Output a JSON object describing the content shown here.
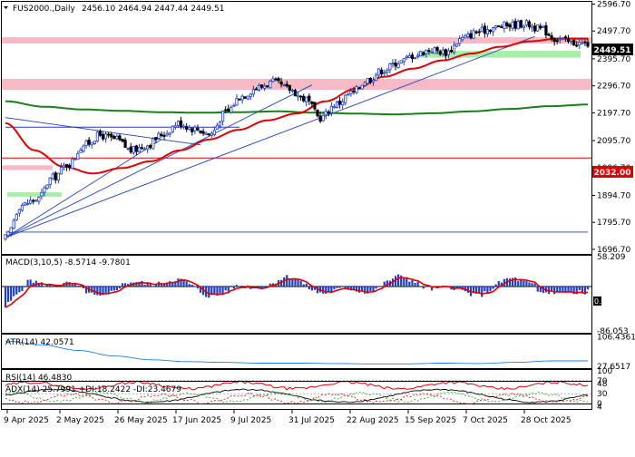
{
  "header": {
    "symbol": "FUS2000.,Daily",
    "ohlc": "2456.10 2464.94 2447.44 2449.51"
  },
  "chart_data": [
    {
      "type": "candlestick",
      "panel": "price",
      "title": "FUS2000.,Daily 2456.10 2464.94 2447.44 2449.51",
      "y_ticks": [
        "2596.70",
        "2497.70",
        "2395.70",
        "2296.70",
        "2197.70",
        "2095.70",
        "1996.70",
        "1894.70",
        "1795.70",
        "1696.70"
      ],
      "x_ticks": [
        "9 Apr 2025",
        "2 May 2025",
        "26 May 2025",
        "17 Jun 2025",
        "9 Jul 2025",
        "31 Jul 2025",
        "22 Aug 2025",
        "15 Sep 2025",
        "7 Oct 2025",
        "28 Oct 2025"
      ],
      "ylim": [
        1680,
        2605
      ],
      "current_price_label": "2449.51",
      "horizontal_line_label": "2032.00",
      "horizontal_line": {
        "value": 2032,
        "color": "#e00000"
      },
      "colors": {
        "bull": "#1f3fbf",
        "bear": "#000000",
        "ma_fast": "#e00000",
        "ma_slow": "#1a7f1a",
        "trend": "#1f3fbf",
        "resistance_zone": "#f7b9c6",
        "support_zone": "#a8eea8"
      },
      "resistance_zones": [
        [
          2452,
          2475
        ],
        [
          2282,
          2322
        ],
        [
          1988,
          2005
        ]
      ],
      "support_zones": [
        [
          2400,
          2425
        ],
        [
          1890,
          1906
        ]
      ],
      "candles_anchor_closes": [
        1740,
        1860,
        1880,
        1960,
        2010,
        2080,
        2115,
        2100,
        2060,
        2080,
        2120,
        2160,
        2140,
        2120,
        2200,
        2260,
        2290,
        2310,
        2285,
        2250,
        2180,
        2230,
        2270,
        2320,
        2355,
        2385,
        2410,
        2430,
        2420,
        2470,
        2495,
        2510,
        2520,
        2525,
        2505,
        2470,
        2455,
        2450
      ],
      "ma_fast_anchors": [
        2160,
        2060,
        2000,
        1975,
        1995,
        2020,
        2060,
        2100,
        2135,
        2170,
        2195,
        2240,
        2285,
        2330,
        2360,
        2390,
        2415,
        2440,
        2460,
        2470,
        2470
      ],
      "ma_slow_anchors": [
        2240,
        2220,
        2210,
        2205,
        2200,
        2198,
        2200,
        2203,
        2198,
        2195,
        2192,
        2196,
        2203,
        2212,
        2222,
        2228
      ],
      "trendlines": [
        {
          "from": [
            0,
            1740
          ],
          "to": [
            56,
            2100
          ]
        },
        {
          "from": [
            0,
            1740
          ],
          "to": [
            110,
            2300
          ]
        },
        {
          "from": [
            0,
            1740
          ],
          "to": [
            190,
            2478
          ]
        },
        {
          "from": [
            0,
            2180
          ],
          "to": [
            70,
            2080
          ]
        },
        {
          "from": [
            0,
            2145
          ],
          "to": [
            84,
            2145
          ]
        },
        {
          "from": [
            0,
            1760
          ],
          "to": [
            209,
            1760
          ]
        }
      ]
    },
    {
      "type": "histogram+line",
      "panel": "MACD",
      "label": "MACD(3,10,5) -8.5714 -9.7801",
      "y_ticks": [
        "58.209",
        "0.00",
        "-86.053"
      ],
      "ylim": [
        -90,
        60
      ],
      "zero_label": "0.00"
    },
    {
      "type": "line",
      "panel": "ATR",
      "label": "ATR(14) 42.0571",
      "y_ticks": [
        "106.4361",
        "27.6517"
      ],
      "ylim": [
        25,
        110
      ]
    },
    {
      "type": "line",
      "panel": "RSI",
      "label": "RSI(14) 46.4830",
      "y_ticks": [
        "100",
        "70",
        "30",
        "0"
      ],
      "ylim": [
        0,
        100
      ],
      "levels": [
        70,
        30
      ]
    },
    {
      "type": "line",
      "panel": "ADX",
      "label": "ADX(14) 25.7991 +DI:18.2422 -DI:23.4679",
      "y_ticks": [
        "48",
        "4"
      ],
      "ylim": [
        0,
        50
      ]
    }
  ]
}
